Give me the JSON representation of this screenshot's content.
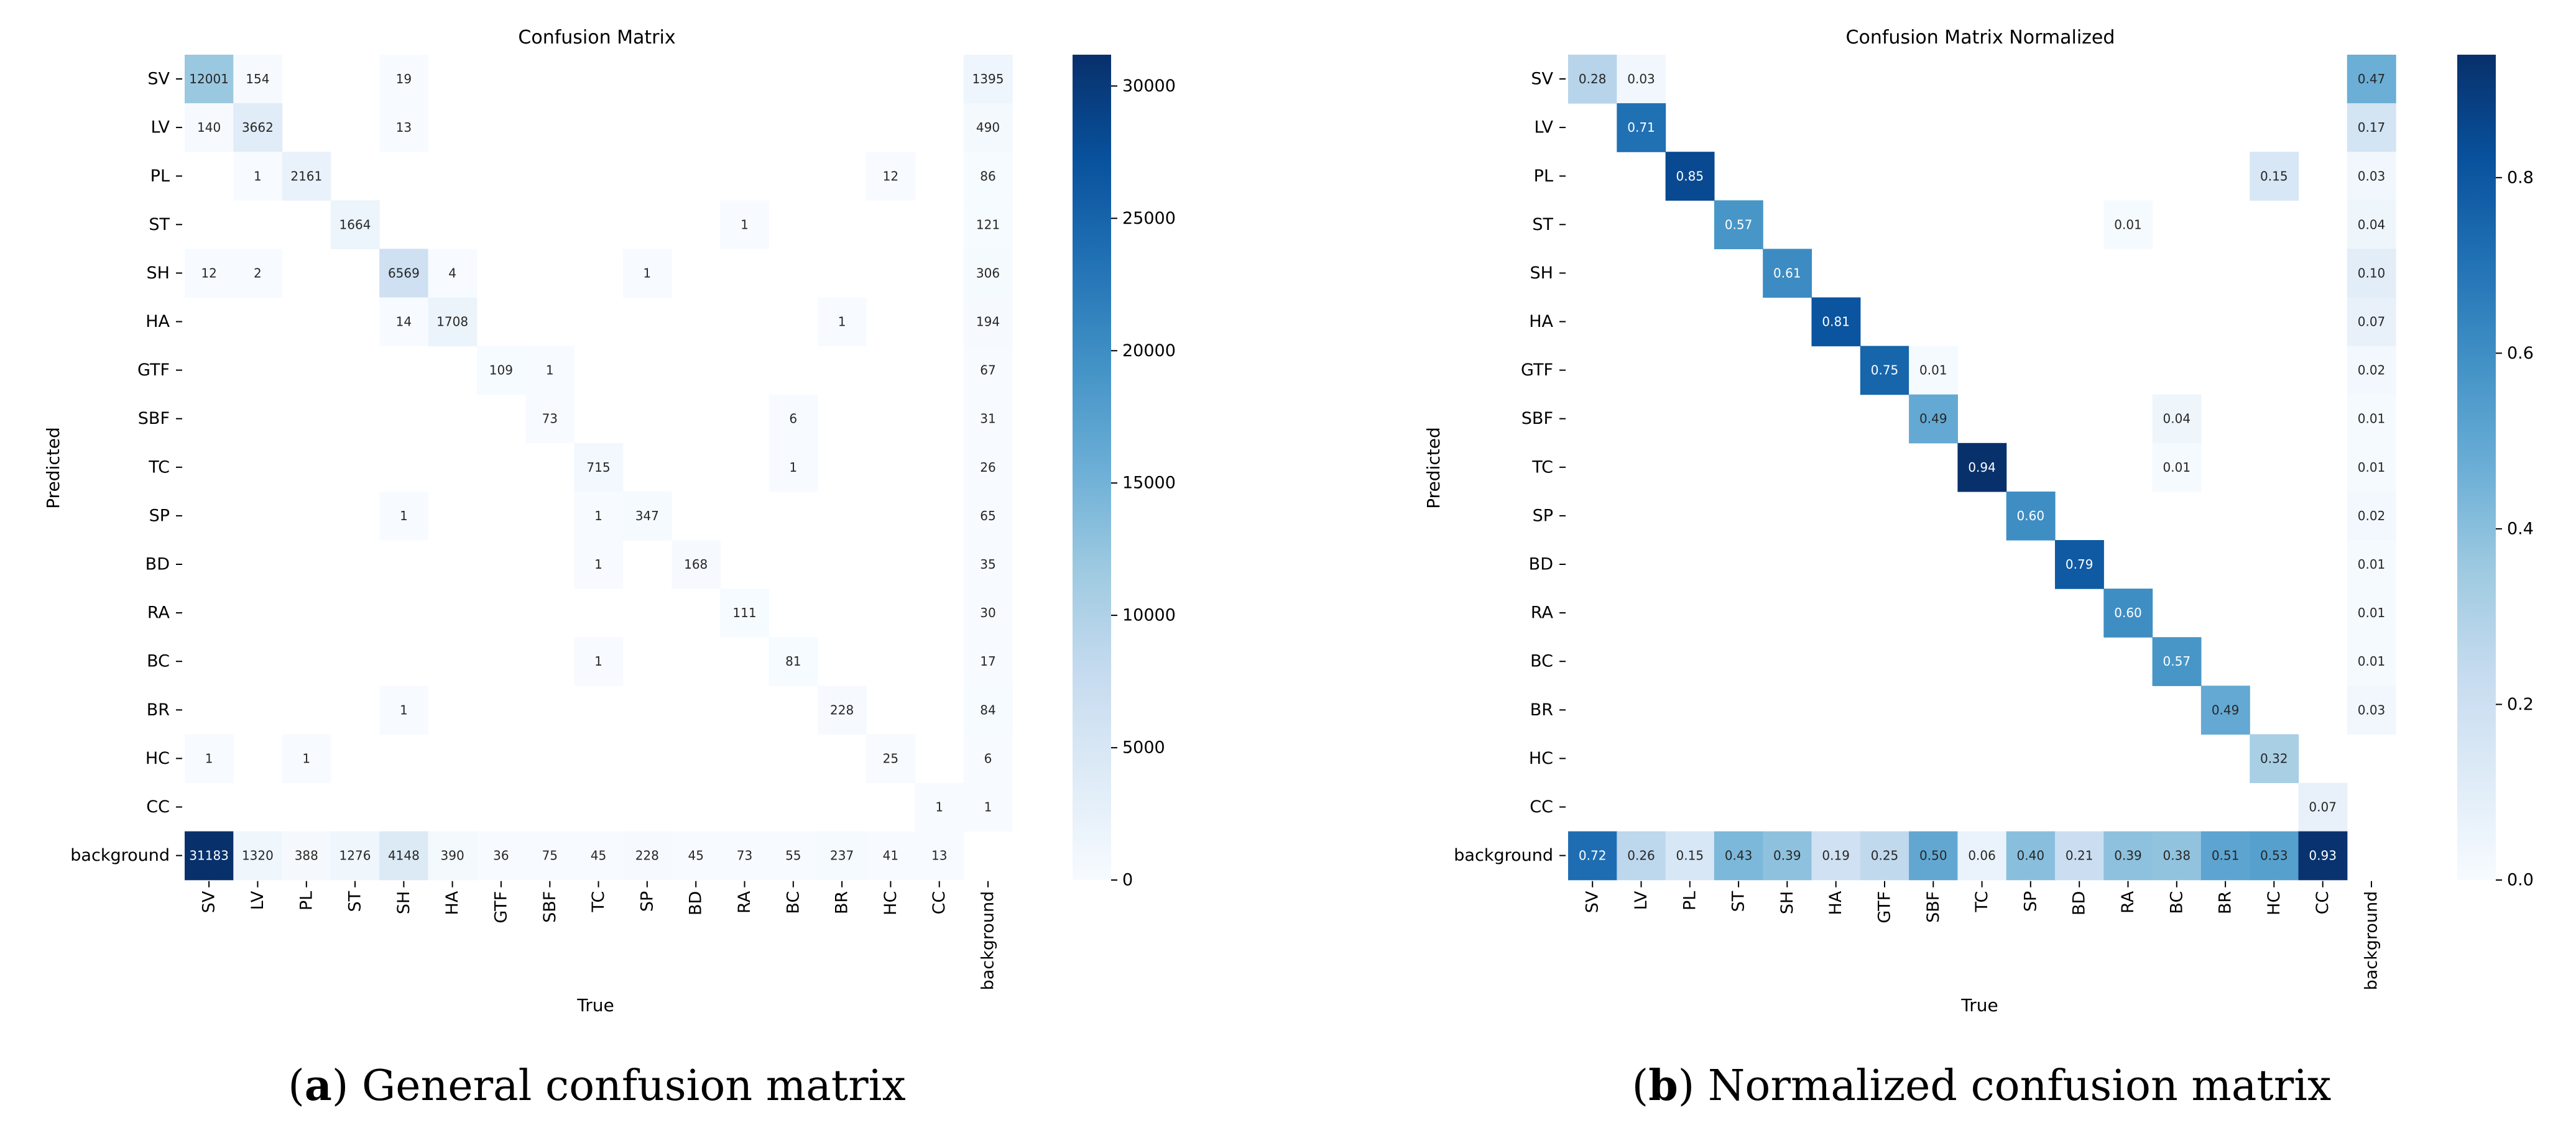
{
  "chart_data": [
    {
      "type": "heatmap",
      "title": "Confusion Matrix",
      "xlabel": "True",
      "ylabel": "Predicted",
      "x_categories": [
        "SV",
        "LV",
        "PL",
        "ST",
        "SH",
        "HA",
        "GTF",
        "SBF",
        "TC",
        "SP",
        "BD",
        "RA",
        "BC",
        "BR",
        "HC",
        "CC",
        "background"
      ],
      "y_categories": [
        "SV",
        "LV",
        "PL",
        "ST",
        "SH",
        "HA",
        "GTF",
        "SBF",
        "TC",
        "SP",
        "BD",
        "RA",
        "BC",
        "BR",
        "HC",
        "CC",
        "background"
      ],
      "colorbar": {
        "min": 0,
        "max": 31183,
        "ticks": [
          0,
          5000,
          10000,
          15000,
          20000,
          25000,
          30000
        ]
      },
      "value_format": "int",
      "matrix": [
        [
          12001,
          154,
          null,
          null,
          19,
          null,
          null,
          null,
          null,
          null,
          null,
          null,
          null,
          null,
          null,
          null,
          1395
        ],
        [
          140,
          3662,
          null,
          null,
          13,
          null,
          null,
          null,
          null,
          null,
          null,
          null,
          null,
          null,
          null,
          null,
          490
        ],
        [
          null,
          1,
          2161,
          null,
          null,
          null,
          null,
          null,
          null,
          null,
          null,
          null,
          null,
          null,
          12,
          null,
          86
        ],
        [
          null,
          null,
          null,
          1664,
          null,
          null,
          null,
          null,
          null,
          null,
          null,
          1,
          null,
          null,
          null,
          null,
          121
        ],
        [
          12,
          2,
          null,
          null,
          6569,
          4,
          null,
          null,
          null,
          1,
          null,
          null,
          null,
          null,
          null,
          null,
          306
        ],
        [
          null,
          null,
          null,
          null,
          14,
          1708,
          null,
          null,
          null,
          null,
          null,
          null,
          null,
          1,
          null,
          null,
          194
        ],
        [
          null,
          null,
          null,
          null,
          null,
          null,
          109,
          1,
          null,
          null,
          null,
          null,
          null,
          null,
          null,
          null,
          67
        ],
        [
          null,
          null,
          null,
          null,
          null,
          null,
          null,
          73,
          null,
          null,
          null,
          null,
          6,
          null,
          null,
          null,
          31
        ],
        [
          null,
          null,
          null,
          null,
          null,
          null,
          null,
          null,
          715,
          null,
          null,
          null,
          1,
          null,
          null,
          null,
          26
        ],
        [
          null,
          null,
          null,
          null,
          1,
          null,
          null,
          null,
          1,
          347,
          null,
          null,
          null,
          null,
          null,
          null,
          65
        ],
        [
          null,
          null,
          null,
          null,
          null,
          null,
          null,
          null,
          1,
          null,
          168,
          null,
          null,
          null,
          null,
          null,
          35
        ],
        [
          null,
          null,
          null,
          null,
          null,
          null,
          null,
          null,
          null,
          null,
          null,
          111,
          null,
          null,
          null,
          null,
          30
        ],
        [
          null,
          null,
          null,
          null,
          null,
          null,
          null,
          null,
          1,
          null,
          null,
          null,
          81,
          null,
          null,
          null,
          17
        ],
        [
          null,
          null,
          null,
          null,
          1,
          null,
          null,
          null,
          null,
          null,
          null,
          null,
          null,
          228,
          null,
          null,
          84
        ],
        [
          1,
          null,
          1,
          null,
          null,
          null,
          null,
          null,
          null,
          null,
          null,
          null,
          null,
          null,
          25,
          null,
          6
        ],
        [
          null,
          null,
          null,
          null,
          null,
          null,
          null,
          null,
          null,
          null,
          null,
          null,
          null,
          null,
          null,
          1,
          1
        ],
        [
          31183,
          1320,
          388,
          1276,
          4148,
          390,
          36,
          75,
          45,
          228,
          45,
          73,
          55,
          237,
          41,
          13,
          null
        ]
      ]
    },
    {
      "type": "heatmap",
      "title": "Confusion Matrix Normalized",
      "xlabel": "True",
      "ylabel": "Predicted",
      "x_categories": [
        "SV",
        "LV",
        "PL",
        "ST",
        "SH",
        "HA",
        "GTF",
        "SBF",
        "TC",
        "SP",
        "BD",
        "RA",
        "BC",
        "BR",
        "HC",
        "CC",
        "background"
      ],
      "y_categories": [
        "SV",
        "LV",
        "PL",
        "ST",
        "SH",
        "HA",
        "GTF",
        "SBF",
        "TC",
        "SP",
        "BD",
        "RA",
        "BC",
        "BR",
        "HC",
        "CC",
        "background"
      ],
      "colorbar": {
        "min": 0,
        "max": 0.94,
        "ticks": [
          0.0,
          0.2,
          0.4,
          0.6,
          0.8
        ]
      },
      "value_format": "2dp",
      "matrix": [
        [
          0.28,
          0.03,
          null,
          null,
          null,
          null,
          null,
          null,
          null,
          null,
          null,
          null,
          null,
          null,
          null,
          null,
          0.47
        ],
        [
          null,
          0.71,
          null,
          null,
          null,
          null,
          null,
          null,
          null,
          null,
          null,
          null,
          null,
          null,
          null,
          null,
          0.17
        ],
        [
          null,
          null,
          0.85,
          null,
          null,
          null,
          null,
          null,
          null,
          null,
          null,
          null,
          null,
          null,
          0.15,
          null,
          0.03
        ],
        [
          null,
          null,
          null,
          0.57,
          null,
          null,
          null,
          null,
          null,
          null,
          null,
          0.01,
          null,
          null,
          null,
          null,
          0.04
        ],
        [
          null,
          null,
          null,
          null,
          0.61,
          null,
          null,
          null,
          null,
          null,
          null,
          null,
          null,
          null,
          null,
          null,
          0.1
        ],
        [
          null,
          null,
          null,
          null,
          null,
          0.81,
          null,
          null,
          null,
          null,
          null,
          null,
          null,
          null,
          null,
          null,
          0.07
        ],
        [
          null,
          null,
          null,
          null,
          null,
          null,
          0.75,
          0.01,
          null,
          null,
          null,
          null,
          null,
          null,
          null,
          null,
          0.02
        ],
        [
          null,
          null,
          null,
          null,
          null,
          null,
          null,
          0.49,
          null,
          null,
          null,
          null,
          0.04,
          null,
          null,
          null,
          0.01
        ],
        [
          null,
          null,
          null,
          null,
          null,
          null,
          null,
          null,
          0.94,
          null,
          null,
          null,
          0.01,
          null,
          null,
          null,
          0.01
        ],
        [
          null,
          null,
          null,
          null,
          null,
          null,
          null,
          null,
          null,
          0.6,
          null,
          null,
          null,
          null,
          null,
          null,
          0.02
        ],
        [
          null,
          null,
          null,
          null,
          null,
          null,
          null,
          null,
          null,
          null,
          0.79,
          null,
          null,
          null,
          null,
          null,
          0.01
        ],
        [
          null,
          null,
          null,
          null,
          null,
          null,
          null,
          null,
          null,
          null,
          null,
          0.6,
          null,
          null,
          null,
          null,
          0.01
        ],
        [
          null,
          null,
          null,
          null,
          null,
          null,
          null,
          null,
          null,
          null,
          null,
          null,
          0.57,
          null,
          null,
          null,
          0.01
        ],
        [
          null,
          null,
          null,
          null,
          null,
          null,
          null,
          null,
          null,
          null,
          null,
          null,
          null,
          0.49,
          null,
          null,
          0.03
        ],
        [
          null,
          null,
          null,
          null,
          null,
          null,
          null,
          null,
          null,
          null,
          null,
          null,
          null,
          null,
          0.32,
          null,
          null
        ],
        [
          null,
          null,
          null,
          null,
          null,
          null,
          null,
          null,
          null,
          null,
          null,
          null,
          null,
          null,
          null,
          0.07,
          null
        ],
        [
          0.72,
          0.26,
          0.15,
          0.43,
          0.39,
          0.19,
          0.25,
          0.5,
          0.06,
          0.4,
          0.21,
          0.39,
          0.38,
          0.51,
          0.53,
          0.93,
          null
        ]
      ]
    }
  ],
  "captions": [
    {
      "letter": "a",
      "paren_open": "(",
      "paren_close": ")",
      "text": " General confusion matrix"
    },
    {
      "letter": "b",
      "paren_open": "(",
      "paren_close": ")",
      "text": " Normalized confusion matrix"
    }
  ]
}
